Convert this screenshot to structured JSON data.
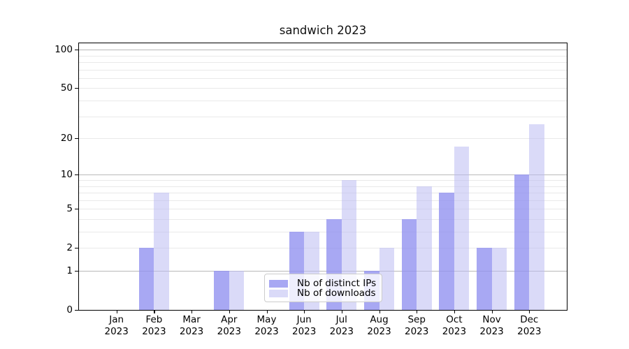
{
  "title": "sandwich 2023",
  "chart_data": {
    "type": "bar",
    "title": "sandwich 2023",
    "yscale": "log1p",
    "ylim": [
      0,
      111
    ],
    "grid": true,
    "year": "2023",
    "categories": [
      "Jan",
      "Feb",
      "Mar",
      "Apr",
      "May",
      "Jun",
      "Jul",
      "Aug",
      "Sep",
      "Oct",
      "Nov",
      "Dec"
    ],
    "series": [
      {
        "name": "Nb of distinct IPs",
        "color": "rgba(143,143,240,0.78)",
        "values": [
          0,
          2,
          0,
          1,
          0,
          3,
          4,
          1,
          4,
          7,
          2,
          10
        ]
      },
      {
        "name": "Nb of downloads",
        "color": "rgba(187,187,242,0.55)",
        "values": [
          0,
          7,
          0,
          1,
          0,
          3,
          9,
          2,
          8,
          17,
          2,
          26
        ]
      }
    ],
    "yticks": [
      0,
      1,
      2,
      5,
      10,
      20,
      50,
      100
    ],
    "gridlines": {
      "minor": [
        2,
        3,
        4,
        5,
        6,
        7,
        8,
        9,
        20,
        30,
        40,
        50,
        60,
        70,
        80,
        90
      ],
      "major": [
        1,
        10,
        100
      ]
    },
    "legend_position": "lower center"
  },
  "colors": {
    "bar_dark": "rgba(143,143,240,0.78)",
    "bar_light": "rgba(187,187,242,0.55)",
    "grid_minor": "#e9e9e9",
    "grid_major": "#b9b9b9",
    "legend_border": "#cccccc"
  }
}
